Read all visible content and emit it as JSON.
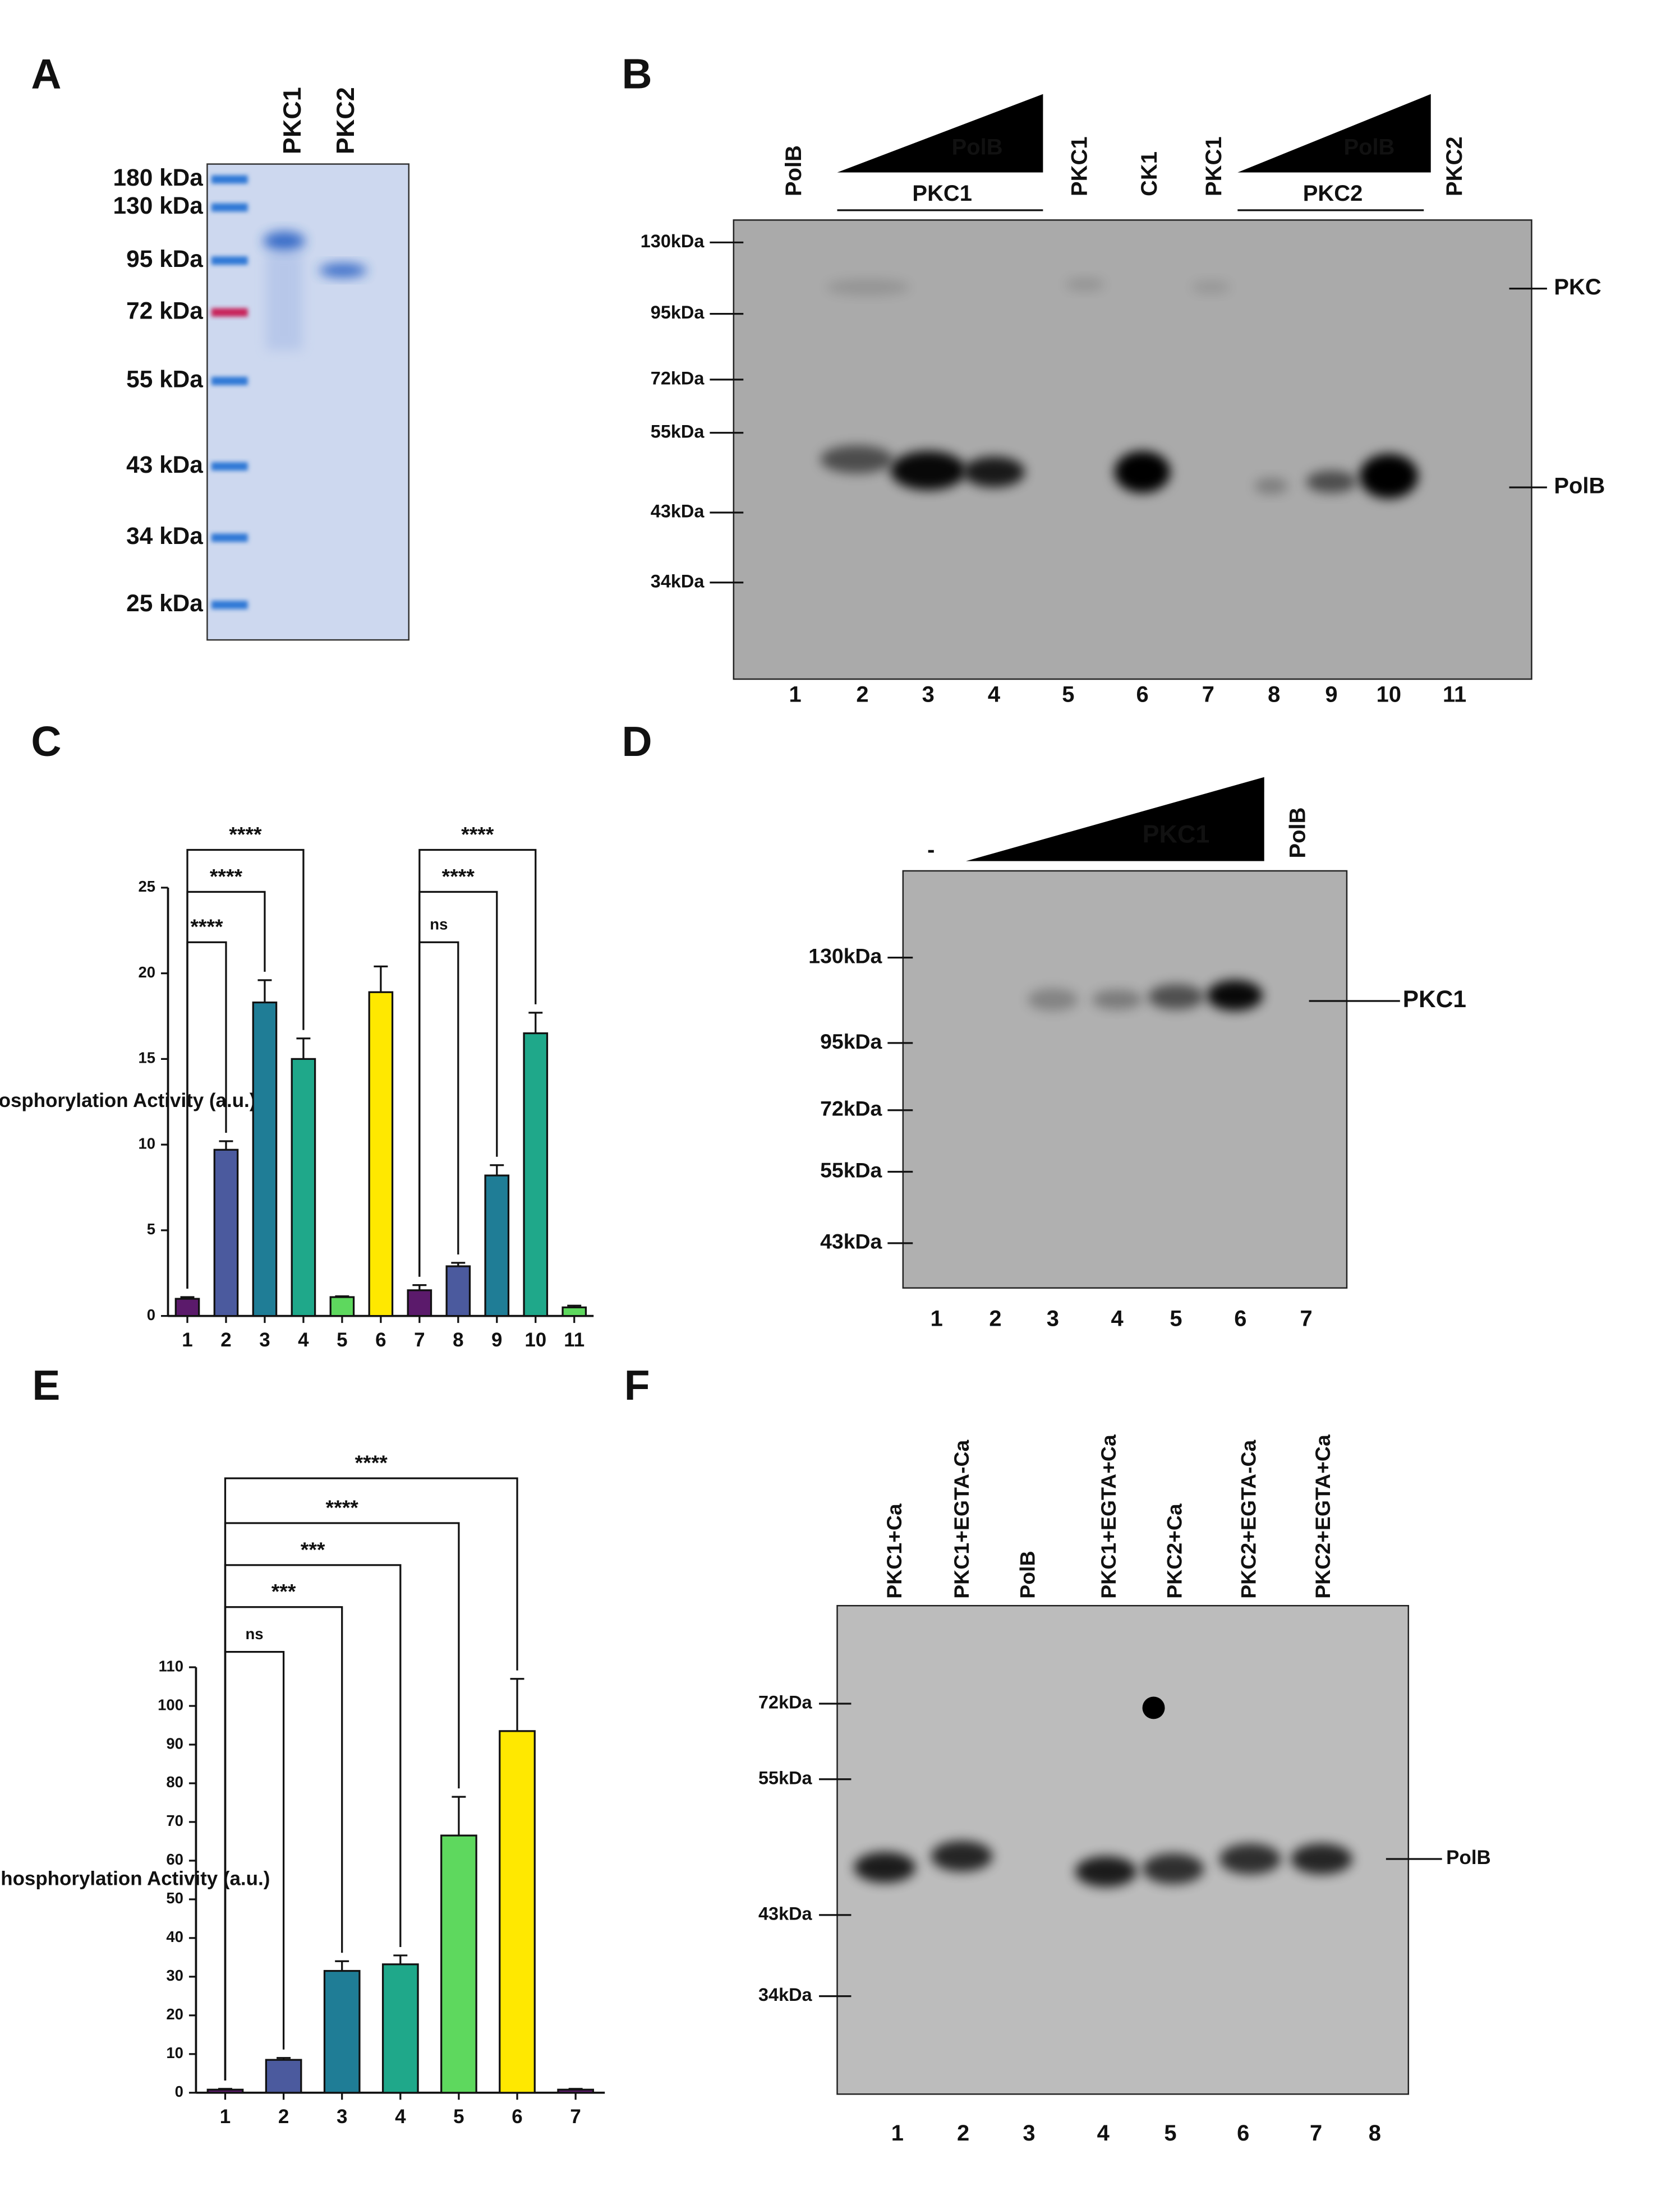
{
  "panels": {
    "A": {
      "letter": "A",
      "lanes": [
        "PKC1",
        "PKC2"
      ],
      "markers": [
        "180 kDa",
        "130 kDa",
        "95 kDa",
        "72 kDa",
        "55 kDa",
        "43 kDa",
        "34 kDa",
        "25 kDa"
      ]
    },
    "B": {
      "letter": "B",
      "top_labels": [
        "PolB",
        "PKC1",
        "CK1",
        "PKC1",
        "PKC2"
      ],
      "gradient_labels": [
        "PolB",
        "PolB"
      ],
      "group_labels": [
        "PKC1",
        "PKC2"
      ],
      "markers": [
        "130kDa",
        "95kDa",
        "72kDa",
        "55kDa",
        "43kDa",
        "34kDa"
      ],
      "right_labels": [
        "PKC",
        "PolB"
      ],
      "lane_numbers": [
        "1",
        "2",
        "3",
        "4",
        "5",
        "6",
        "7",
        "8",
        "9",
        "10",
        "11"
      ]
    },
    "C": {
      "letter": "C"
    },
    "D": {
      "letter": "D",
      "first_lane": "-",
      "gradient_label": "PKC1",
      "last_lane": "PolB",
      "markers": [
        "130kDa",
        "95kDa",
        "72kDa",
        "55kDa",
        "43kDa"
      ],
      "right_label": "PKC1",
      "lane_numbers": [
        "1",
        "2",
        "3",
        "4",
        "5",
        "6",
        "7"
      ]
    },
    "E": {
      "letter": "E"
    },
    "F": {
      "letter": "F",
      "lanes": [
        "PKC1+Ca",
        "PKC1+EGTA-Ca",
        "PolB",
        "PKC1+EGTA+Ca",
        "PKC2+Ca",
        "PKC2+EGTA-Ca",
        "PKC2+EGTA+Ca"
      ],
      "markers": [
        "72kDa",
        "55kDa",
        "43kDa",
        "34kDa"
      ],
      "right_label": "PolB",
      "lane_numbers": [
        "1",
        "2",
        "3",
        "4",
        "5",
        "6",
        "7",
        "8"
      ]
    }
  },
  "chart_data": [
    {
      "type": "bar",
      "ylabel": "Phosphorylation Activity (a.u.)",
      "categories": [
        "1",
        "2",
        "3",
        "4",
        "5",
        "6",
        "7",
        "8",
        "9",
        "10",
        "11"
      ],
      "values": [
        1.0,
        9.7,
        18.3,
        15.0,
        1.1,
        18.9,
        1.5,
        2.9,
        8.2,
        16.5,
        0.5
      ],
      "errors": [
        0.1,
        0.5,
        1.3,
        1.2,
        0.05,
        1.5,
        0.3,
        0.2,
        0.6,
        1.2,
        0.1
      ],
      "colors": [
        "#5b1a6b",
        "#4b5a9e",
        "#1f7d96",
        "#1fa88a",
        "#5ed85e",
        "#ffe800",
        "#5b1a6b",
        "#4b5a9e",
        "#1f7d96",
        "#1fa88a",
        "#5ed85e"
      ],
      "ylim": [
        0,
        25
      ],
      "yticks": [
        0,
        5,
        10,
        15,
        20,
        25
      ],
      "annotations": [
        "****",
        "****",
        "****",
        "ns",
        "****",
        "****"
      ]
    },
    {
      "type": "bar",
      "ylabel": "Phosphorylation Activity (a.u.)",
      "categories": [
        "1",
        "2",
        "3",
        "4",
        "5",
        "6",
        "7"
      ],
      "values": [
        0.8,
        8.5,
        31.5,
        33.2,
        66.5,
        93.5,
        0.8
      ],
      "errors": [
        0.2,
        0.5,
        2.5,
        2.3,
        10,
        13.5,
        0.2
      ],
      "colors": [
        "#5b1a6b",
        "#4b5a9e",
        "#1f7d96",
        "#1fa88a",
        "#5ed85e",
        "#ffe800",
        "#5b1a6b"
      ],
      "ylim": [
        0,
        110
      ],
      "yticks": [
        0,
        10,
        20,
        30,
        40,
        50,
        60,
        70,
        80,
        90,
        100,
        110
      ],
      "annotations": [
        "ns",
        "***",
        "***",
        "****",
        "****"
      ]
    }
  ]
}
